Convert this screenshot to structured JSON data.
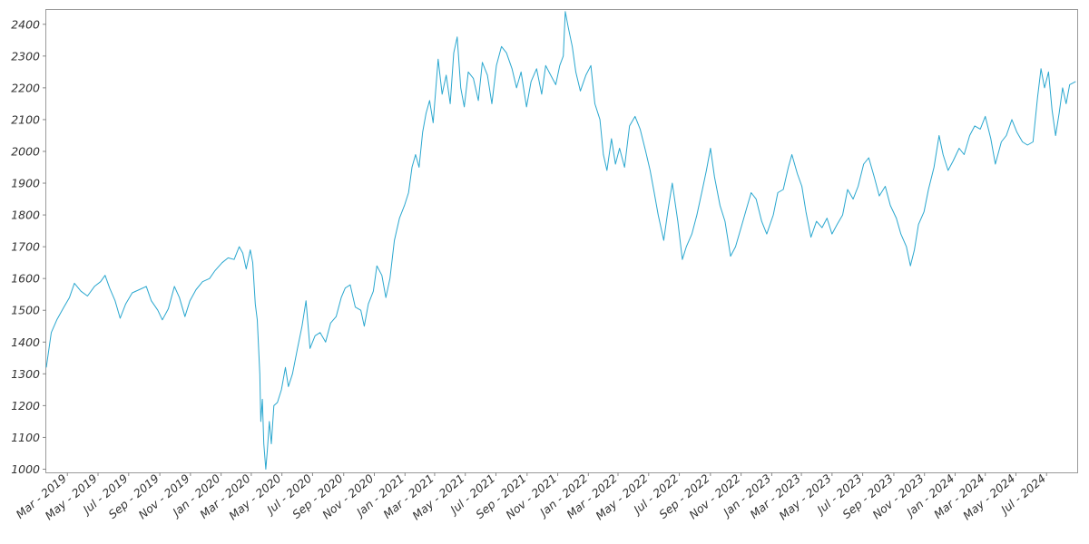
{
  "chart_data": {
    "type": "line",
    "title": "",
    "xlabel": "",
    "ylabel": "",
    "grid": false,
    "xlim": [
      "2019-01-18",
      "2024-08-31"
    ],
    "ylim": [
      990,
      2445
    ],
    "y_ticks": [
      1000,
      1100,
      1200,
      1300,
      1400,
      1500,
      1600,
      1700,
      1800,
      1900,
      2000,
      2100,
      2200,
      2300,
      2400
    ],
    "x_ticks": [
      {
        "date": "2019-03-01",
        "label": "Mar - 2019"
      },
      {
        "date": "2019-05-01",
        "label": "May - 2019"
      },
      {
        "date": "2019-07-01",
        "label": "Jul - 2019"
      },
      {
        "date": "2019-09-01",
        "label": "Sep - 2019"
      },
      {
        "date": "2019-11-01",
        "label": "Nov - 2019"
      },
      {
        "date": "2020-01-01",
        "label": "Jan - 2020"
      },
      {
        "date": "2020-03-01",
        "label": "Mar - 2020"
      },
      {
        "date": "2020-05-01",
        "label": "May - 2020"
      },
      {
        "date": "2020-07-01",
        "label": "Jul - 2020"
      },
      {
        "date": "2020-09-01",
        "label": "Sep - 2020"
      },
      {
        "date": "2020-11-01",
        "label": "Nov - 2020"
      },
      {
        "date": "2021-01-01",
        "label": "Jan - 2021"
      },
      {
        "date": "2021-03-01",
        "label": "Mar - 2021"
      },
      {
        "date": "2021-05-01",
        "label": "May - 2021"
      },
      {
        "date": "2021-07-01",
        "label": "Jul - 2021"
      },
      {
        "date": "2021-09-01",
        "label": "Sep - 2021"
      },
      {
        "date": "2021-11-01",
        "label": "Nov - 2021"
      },
      {
        "date": "2022-01-01",
        "label": "Jan - 2022"
      },
      {
        "date": "2022-03-01",
        "label": "Mar - 2022"
      },
      {
        "date": "2022-05-01",
        "label": "May - 2022"
      },
      {
        "date": "2022-07-01",
        "label": "Jul - 2022"
      },
      {
        "date": "2022-09-01",
        "label": "Sep - 2022"
      },
      {
        "date": "2022-11-01",
        "label": "Nov - 2022"
      },
      {
        "date": "2023-01-01",
        "label": "Jan - 2023"
      },
      {
        "date": "2023-03-01",
        "label": "Mar - 2023"
      },
      {
        "date": "2023-05-01",
        "label": "May - 2023"
      },
      {
        "date": "2023-07-01",
        "label": "Jul - 2023"
      },
      {
        "date": "2023-09-01",
        "label": "Sep - 2023"
      },
      {
        "date": "2023-11-01",
        "label": "Nov - 2023"
      },
      {
        "date": "2024-01-01",
        "label": "Jan - 2024"
      },
      {
        "date": "2024-03-01",
        "label": "Mar - 2024"
      },
      {
        "date": "2024-05-01",
        "label": "May - 2024"
      },
      {
        "date": "2024-07-01",
        "label": "Jul - 2024"
      }
    ],
    "series": [
      {
        "color": "#2aa7cf",
        "points": [
          [
            "2019-01-18",
            1320
          ],
          [
            "2019-01-28",
            1430
          ],
          [
            "2019-02-08",
            1470
          ],
          [
            "2019-02-22",
            1510
          ],
          [
            "2019-03-05",
            1540
          ],
          [
            "2019-03-15",
            1585
          ],
          [
            "2019-03-28",
            1560
          ],
          [
            "2019-04-10",
            1545
          ],
          [
            "2019-04-24",
            1575
          ],
          [
            "2019-05-06",
            1590
          ],
          [
            "2019-05-15",
            1610
          ],
          [
            "2019-05-24",
            1570
          ],
          [
            "2019-06-04",
            1530
          ],
          [
            "2019-06-14",
            1475
          ],
          [
            "2019-06-25",
            1520
          ],
          [
            "2019-07-08",
            1555
          ],
          [
            "2019-07-22",
            1565
          ],
          [
            "2019-08-05",
            1575
          ],
          [
            "2019-08-15",
            1530
          ],
          [
            "2019-08-28",
            1500
          ],
          [
            "2019-09-06",
            1470
          ],
          [
            "2019-09-18",
            1505
          ],
          [
            "2019-09-30",
            1575
          ],
          [
            "2019-10-10",
            1540
          ],
          [
            "2019-10-21",
            1480
          ],
          [
            "2019-10-31",
            1530
          ],
          [
            "2019-11-12",
            1565
          ],
          [
            "2019-11-25",
            1590
          ],
          [
            "2019-12-09",
            1600
          ],
          [
            "2019-12-20",
            1625
          ],
          [
            "2020-01-03",
            1650
          ],
          [
            "2020-01-15",
            1665
          ],
          [
            "2020-01-27",
            1660
          ],
          [
            "2020-02-06",
            1700
          ],
          [
            "2020-02-13",
            1680
          ],
          [
            "2020-02-20",
            1630
          ],
          [
            "2020-02-28",
            1690
          ],
          [
            "2020-03-04",
            1650
          ],
          [
            "2020-03-09",
            1520
          ],
          [
            "2020-03-13",
            1470
          ],
          [
            "2020-03-18",
            1300
          ],
          [
            "2020-03-20",
            1150
          ],
          [
            "2020-03-23",
            1220
          ],
          [
            "2020-03-26",
            1080
          ],
          [
            "2020-03-30",
            1000
          ],
          [
            "2020-04-02",
            1060
          ],
          [
            "2020-04-06",
            1150
          ],
          [
            "2020-04-10",
            1080
          ],
          [
            "2020-04-15",
            1200
          ],
          [
            "2020-04-22",
            1210
          ],
          [
            "2020-04-30",
            1250
          ],
          [
            "2020-05-08",
            1320
          ],
          [
            "2020-05-14",
            1260
          ],
          [
            "2020-05-22",
            1300
          ],
          [
            "2020-06-01",
            1380
          ],
          [
            "2020-06-10",
            1450
          ],
          [
            "2020-06-18",
            1530
          ],
          [
            "2020-06-26",
            1380
          ],
          [
            "2020-07-06",
            1420
          ],
          [
            "2020-07-16",
            1430
          ],
          [
            "2020-07-27",
            1400
          ],
          [
            "2020-08-06",
            1460
          ],
          [
            "2020-08-17",
            1480
          ],
          [
            "2020-08-27",
            1540
          ],
          [
            "2020-09-04",
            1570
          ],
          [
            "2020-09-14",
            1580
          ],
          [
            "2020-09-24",
            1510
          ],
          [
            "2020-10-05",
            1500
          ],
          [
            "2020-10-12",
            1450
          ],
          [
            "2020-10-20",
            1520
          ],
          [
            "2020-10-30",
            1560
          ],
          [
            "2020-11-06",
            1640
          ],
          [
            "2020-11-16",
            1610
          ],
          [
            "2020-11-24",
            1540
          ],
          [
            "2020-12-02",
            1600
          ],
          [
            "2020-12-11",
            1720
          ],
          [
            "2020-12-21",
            1790
          ],
          [
            "2020-12-31",
            1830
          ],
          [
            "2021-01-08",
            1870
          ],
          [
            "2021-01-15",
            1950
          ],
          [
            "2021-01-22",
            1990
          ],
          [
            "2021-01-29",
            1950
          ],
          [
            "2021-02-05",
            2060
          ],
          [
            "2021-02-12",
            2120
          ],
          [
            "2021-02-19",
            2160
          ],
          [
            "2021-02-26",
            2090
          ],
          [
            "2021-03-08",
            2290
          ],
          [
            "2021-03-16",
            2180
          ],
          [
            "2021-03-24",
            2240
          ],
          [
            "2021-04-01",
            2150
          ],
          [
            "2021-04-08",
            2310
          ],
          [
            "2021-04-15",
            2360
          ],
          [
            "2021-04-22",
            2200
          ],
          [
            "2021-04-29",
            2140
          ],
          [
            "2021-05-07",
            2250
          ],
          [
            "2021-05-17",
            2230
          ],
          [
            "2021-05-27",
            2160
          ],
          [
            "2021-06-04",
            2280
          ],
          [
            "2021-06-14",
            2240
          ],
          [
            "2021-06-23",
            2150
          ],
          [
            "2021-07-02",
            2270
          ],
          [
            "2021-07-12",
            2330
          ],
          [
            "2021-07-22",
            2310
          ],
          [
            "2021-08-02",
            2260
          ],
          [
            "2021-08-11",
            2200
          ],
          [
            "2021-08-20",
            2250
          ],
          [
            "2021-08-31",
            2140
          ],
          [
            "2021-09-09",
            2220
          ],
          [
            "2021-09-20",
            2260
          ],
          [
            "2021-09-30",
            2180
          ],
          [
            "2021-10-08",
            2270
          ],
          [
            "2021-10-18",
            2240
          ],
          [
            "2021-10-28",
            2210
          ],
          [
            "2021-11-05",
            2270
          ],
          [
            "2021-11-12",
            2300
          ],
          [
            "2021-11-16",
            2440
          ],
          [
            "2021-11-22",
            2390
          ],
          [
            "2021-11-30",
            2330
          ],
          [
            "2021-12-07",
            2250
          ],
          [
            "2021-12-16",
            2190
          ],
          [
            "2021-12-27",
            2240
          ],
          [
            "2022-01-06",
            2270
          ],
          [
            "2022-01-14",
            2150
          ],
          [
            "2022-01-24",
            2100
          ],
          [
            "2022-01-31",
            1990
          ],
          [
            "2022-02-07",
            1940
          ],
          [
            "2022-02-16",
            2040
          ],
          [
            "2022-02-24",
            1960
          ],
          [
            "2022-03-04",
            2010
          ],
          [
            "2022-03-14",
            1950
          ],
          [
            "2022-03-24",
            2080
          ],
          [
            "2022-04-04",
            2110
          ],
          [
            "2022-04-14",
            2070
          ],
          [
            "2022-04-25",
            2000
          ],
          [
            "2022-05-04",
            1940
          ],
          [
            "2022-05-12",
            1870
          ],
          [
            "2022-05-20",
            1800
          ],
          [
            "2022-05-31",
            1720
          ],
          [
            "2022-06-08",
            1810
          ],
          [
            "2022-06-17",
            1900
          ],
          [
            "2022-06-28",
            1780
          ],
          [
            "2022-07-07",
            1660
          ],
          [
            "2022-07-15",
            1700
          ],
          [
            "2022-07-26",
            1740
          ],
          [
            "2022-08-05",
            1800
          ],
          [
            "2022-08-16",
            1880
          ],
          [
            "2022-08-24",
            1940
          ],
          [
            "2022-09-01",
            2010
          ],
          [
            "2022-09-09",
            1920
          ],
          [
            "2022-09-20",
            1830
          ],
          [
            "2022-09-30",
            1780
          ],
          [
            "2022-10-11",
            1670
          ],
          [
            "2022-10-21",
            1700
          ],
          [
            "2022-11-01",
            1760
          ],
          [
            "2022-11-10",
            1810
          ],
          [
            "2022-11-21",
            1870
          ],
          [
            "2022-12-01",
            1850
          ],
          [
            "2022-12-12",
            1780
          ],
          [
            "2022-12-22",
            1740
          ],
          [
            "2023-01-04",
            1800
          ],
          [
            "2023-01-13",
            1870
          ],
          [
            "2023-01-24",
            1880
          ],
          [
            "2023-02-03",
            1950
          ],
          [
            "2023-02-10",
            1990
          ],
          [
            "2023-02-21",
            1930
          ],
          [
            "2023-03-02",
            1890
          ],
          [
            "2023-03-10",
            1810
          ],
          [
            "2023-03-20",
            1730
          ],
          [
            "2023-03-31",
            1780
          ],
          [
            "2023-04-11",
            1760
          ],
          [
            "2023-04-21",
            1790
          ],
          [
            "2023-05-01",
            1740
          ],
          [
            "2023-05-11",
            1770
          ],
          [
            "2023-05-22",
            1800
          ],
          [
            "2023-06-01",
            1880
          ],
          [
            "2023-06-12",
            1850
          ],
          [
            "2023-06-22",
            1890
          ],
          [
            "2023-07-03",
            1960
          ],
          [
            "2023-07-13",
            1980
          ],
          [
            "2023-07-24",
            1920
          ],
          [
            "2023-08-03",
            1860
          ],
          [
            "2023-08-15",
            1890
          ],
          [
            "2023-08-25",
            1830
          ],
          [
            "2023-09-06",
            1790
          ],
          [
            "2023-09-15",
            1740
          ],
          [
            "2023-09-26",
            1700
          ],
          [
            "2023-10-04",
            1640
          ],
          [
            "2023-10-12",
            1690
          ],
          [
            "2023-10-20",
            1770
          ],
          [
            "2023-10-31",
            1810
          ],
          [
            "2023-11-09",
            1880
          ],
          [
            "2023-11-20",
            1950
          ],
          [
            "2023-11-30",
            2050
          ],
          [
            "2023-12-08",
            1990
          ],
          [
            "2023-12-18",
            1940
          ],
          [
            "2023-12-28",
            1970
          ],
          [
            "2024-01-09",
            2010
          ],
          [
            "2024-01-19",
            1990
          ],
          [
            "2024-01-30",
            2050
          ],
          [
            "2024-02-09",
            2080
          ],
          [
            "2024-02-20",
            2070
          ],
          [
            "2024-03-01",
            2110
          ],
          [
            "2024-03-12",
            2040
          ],
          [
            "2024-03-21",
            1960
          ],
          [
            "2024-04-02",
            2030
          ],
          [
            "2024-04-12",
            2050
          ],
          [
            "2024-04-23",
            2100
          ],
          [
            "2024-05-03",
            2060
          ],
          [
            "2024-05-14",
            2030
          ],
          [
            "2024-05-24",
            2020
          ],
          [
            "2024-06-04",
            2030
          ],
          [
            "2024-06-13",
            2170
          ],
          [
            "2024-06-20",
            2260
          ],
          [
            "2024-06-27",
            2200
          ],
          [
            "2024-07-05",
            2250
          ],
          [
            "2024-07-12",
            2130
          ],
          [
            "2024-07-19",
            2050
          ],
          [
            "2024-07-26",
            2120
          ],
          [
            "2024-08-02",
            2200
          ],
          [
            "2024-08-09",
            2150
          ],
          [
            "2024-08-16",
            2210
          ],
          [
            "2024-08-28",
            2220
          ]
        ]
      }
    ]
  }
}
